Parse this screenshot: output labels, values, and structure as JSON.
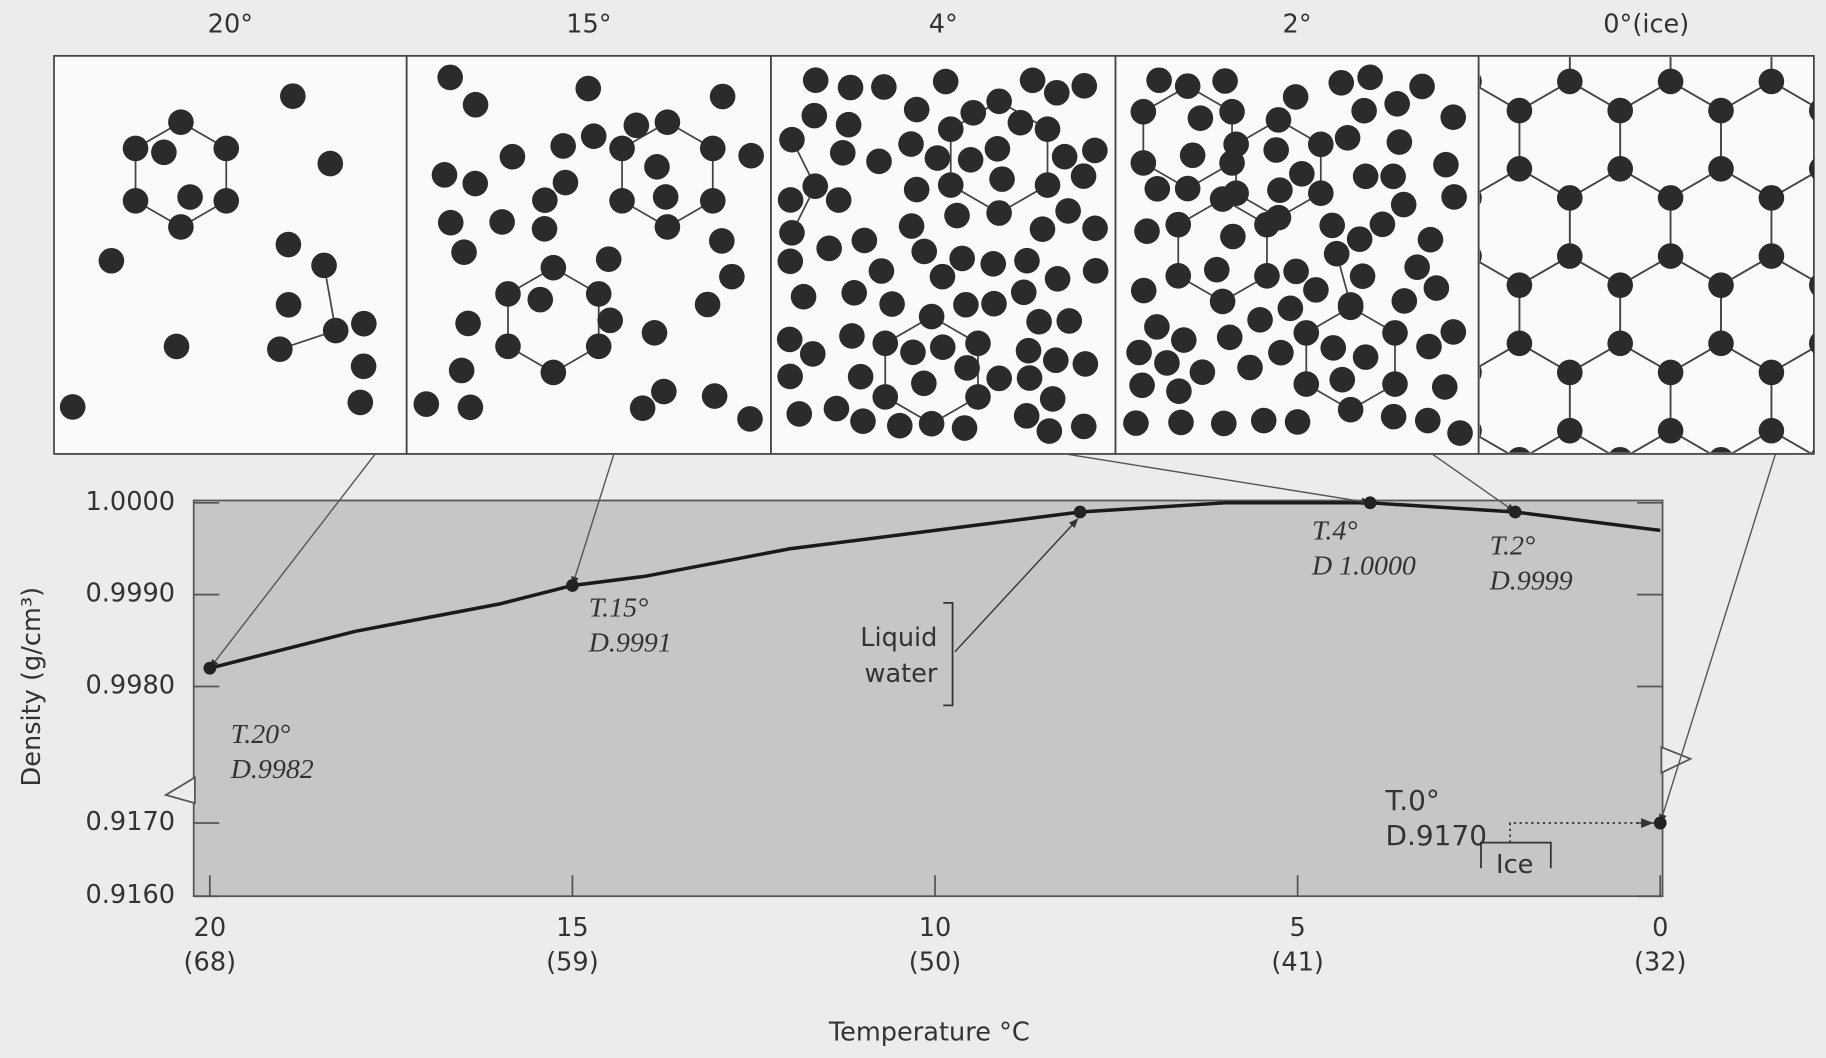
{
  "panels": [
    "20°",
    "15°",
    "4°",
    "2°",
    "0°(ice)"
  ],
  "chart_data": {
    "type": "line",
    "y_label": "Density (g/cm³)",
    "x_label": "Temperature °C",
    "x": [
      20,
      18,
      16,
      15,
      14,
      12,
      10,
      8,
      6,
      4,
      2,
      0
    ],
    "values": [
      0.9982,
      0.9986,
      0.9989,
      0.9991,
      0.9992,
      0.9995,
      0.9997,
      0.9999,
      1,
      1,
      0.9999,
      0.9997
    ],
    "color": "#1a1a1a",
    "xlim": [
      20.2,
      0
    ],
    "xticks": [
      20,
      15,
      10,
      5,
      0
    ],
    "xtick_sublabels": [
      "(68)",
      "(59)",
      "(50)",
      "(41)",
      "(32)"
    ],
    "ylim": [
      0.916,
      1
    ],
    "y_break": [
      0.9174,
      0.9972
    ],
    "yticks": [
      {
        "value": 1,
        "label": "1.0000"
      },
      {
        "value": 0.999,
        "label": "0.9990"
      },
      {
        "value": 0.998,
        "label": "0.9980"
      },
      {
        "value": 0.917,
        "label": "0.9170"
      },
      {
        "value": 0.916,
        "label": "0.9160"
      }
    ],
    "points": [
      {
        "x": 20,
        "y": 0.9982,
        "labels": [
          "T.20°",
          "D.9982"
        ]
      },
      {
        "x": 15,
        "y": 0.9991,
        "labels": [
          "T.15°",
          "D.9991"
        ]
      },
      {
        "x": 8,
        "y": 0.9999
      },
      {
        "x": 4,
        "y": 1,
        "labels": [
          "T.4°",
          "D 1.0000"
        ]
      },
      {
        "x": 2,
        "y": 0.9999,
        "labels": [
          "T.2°",
          "D.9999"
        ]
      },
      {
        "x": 0,
        "y": 0.917,
        "labels": [
          "T.0°",
          "D.9170"
        ]
      }
    ],
    "annotations": {
      "liquid": [
        "Liquid",
        "water"
      ],
      "ice": "Ice"
    }
  }
}
